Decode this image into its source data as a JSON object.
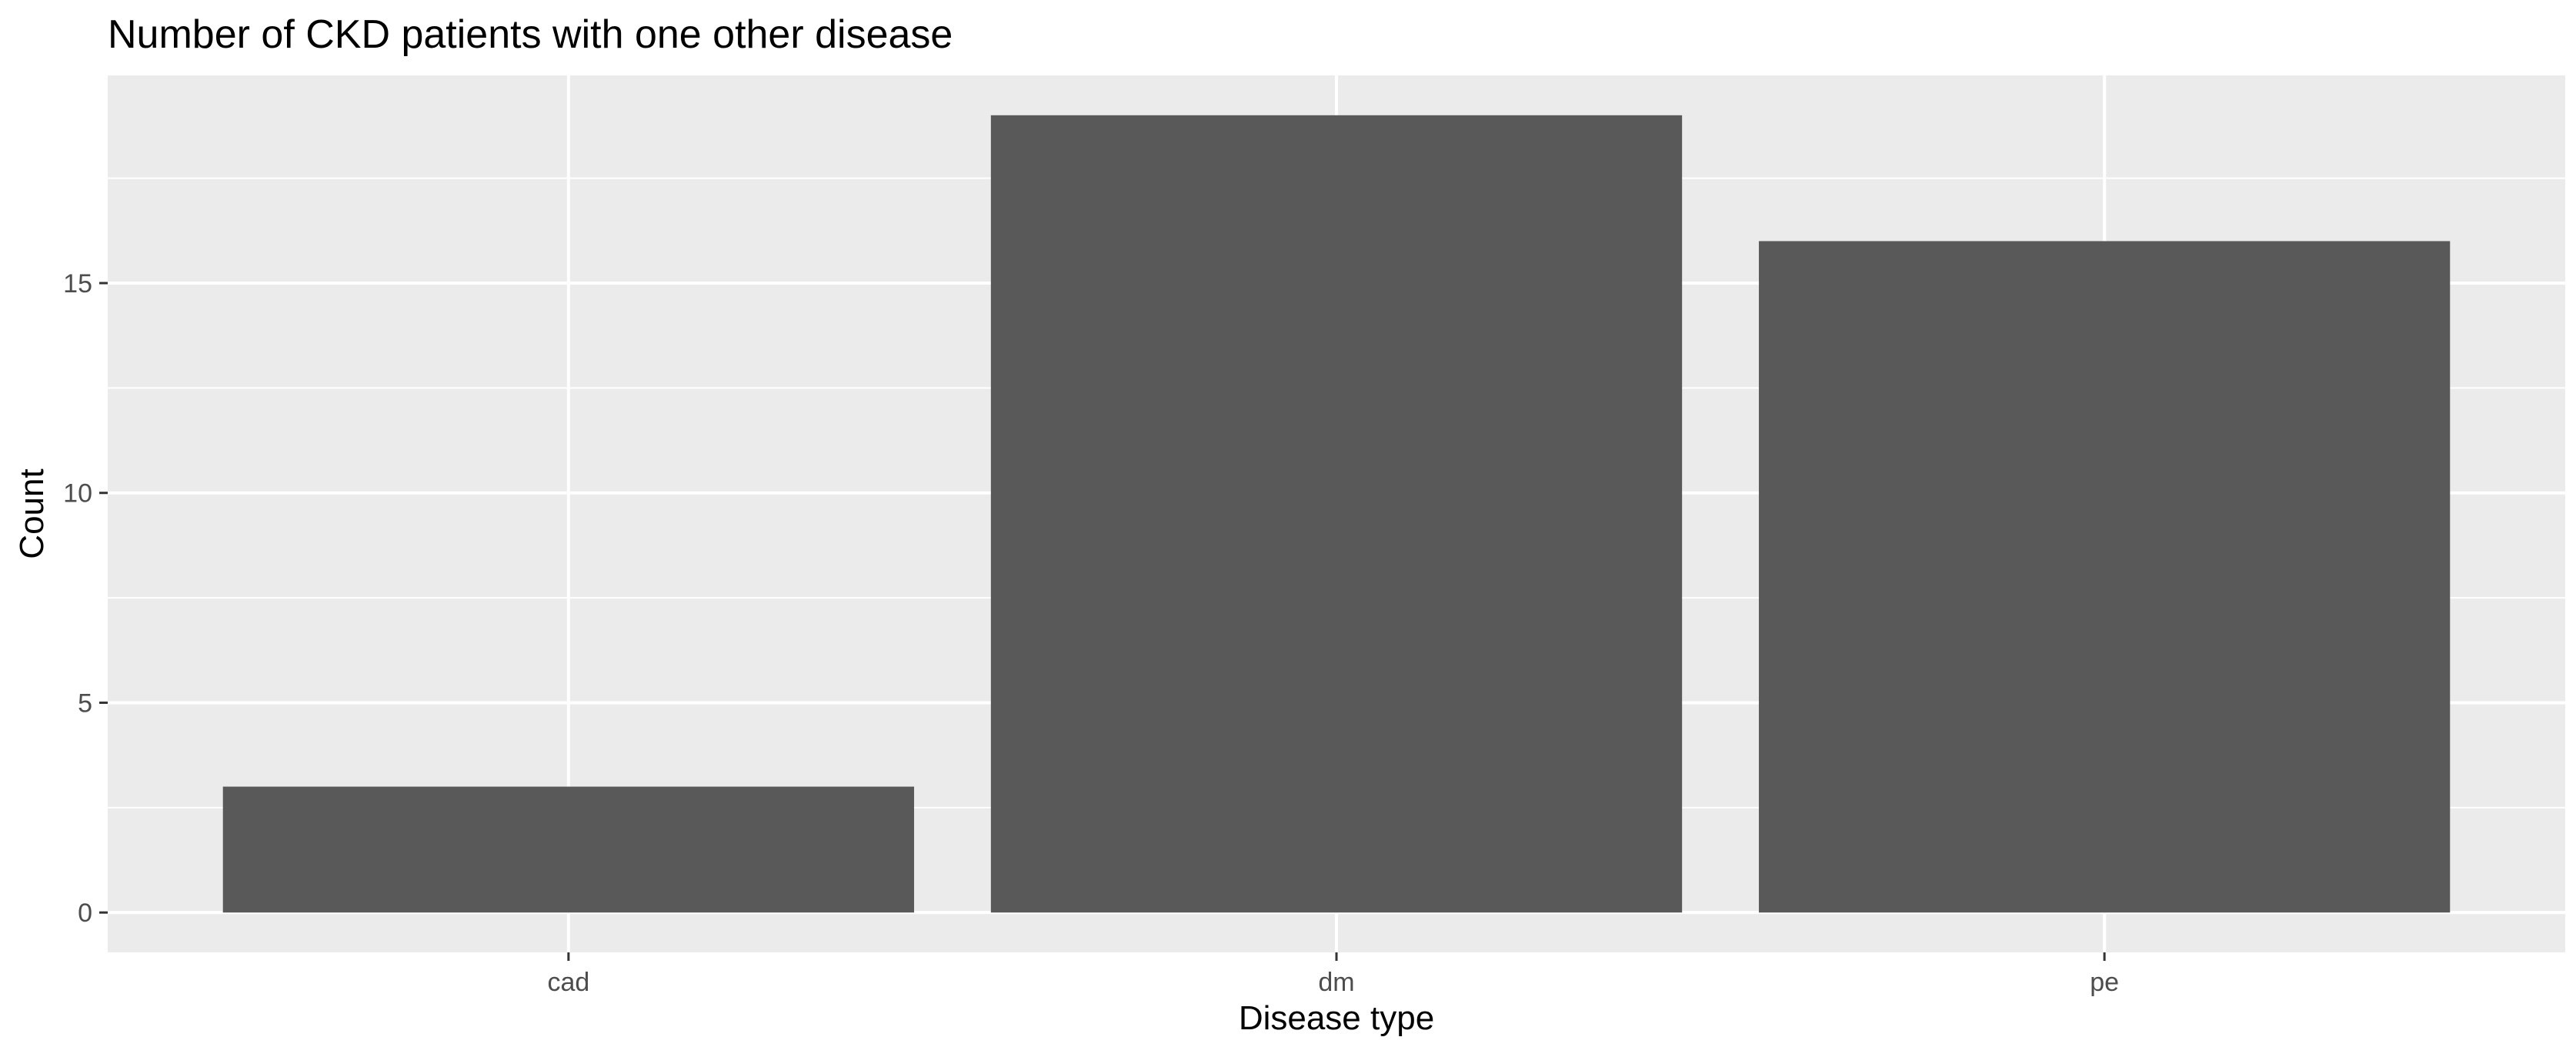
{
  "chart_data": {
    "type": "bar",
    "title": "Number of CKD patients with one other disease",
    "xlabel": "Disease type",
    "ylabel": "Count",
    "categories": [
      "cad",
      "dm",
      "pe"
    ],
    "values": [
      3,
      19,
      16
    ],
    "yticks": [
      0,
      5,
      10,
      15
    ],
    "ylim": [
      -0.95,
      19.95
    ],
    "grid": true,
    "legend": "none",
    "colors": {
      "bar": "#595959",
      "panel_background": "#ebebeb",
      "grid": "#ffffff",
      "tick_label": "#4d4d4d",
      "tick_mark": "#333333"
    }
  }
}
